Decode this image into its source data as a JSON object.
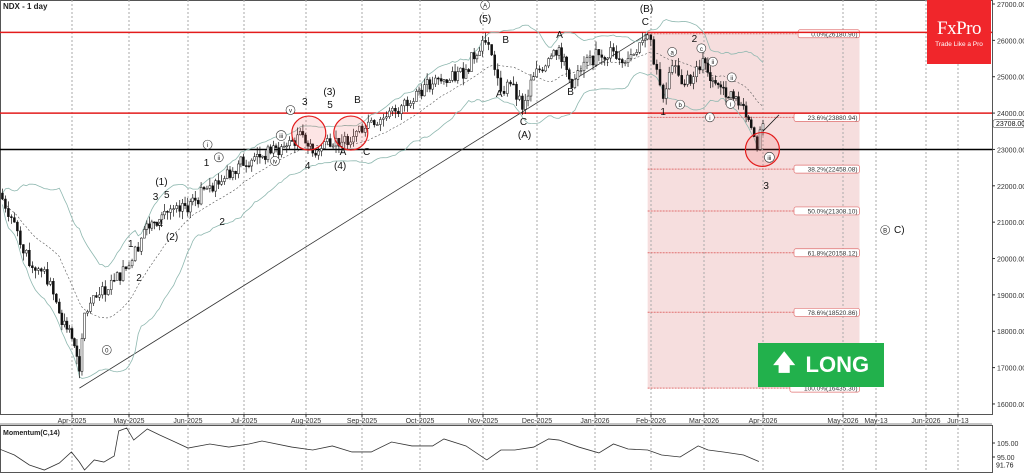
{
  "header": {
    "symbol_title": "NDX - 1 day"
  },
  "brand": {
    "name": "FxPro",
    "tagline": "Trade Like a Pro",
    "color": "#f0262b"
  },
  "signal": {
    "label": "LONG",
    "icon": "arrow-up-icon",
    "color": "#22b14c"
  },
  "chart_data": [
    {
      "type": "candlestick",
      "title": "NDX - 1 day",
      "time_unit": "months since Mar-2025",
      "ylim": [
        16000,
        27000
      ],
      "y_ticks": [
        16000,
        17000,
        18000,
        19000,
        20000,
        21000,
        22000,
        23000,
        24000,
        25000,
        26000,
        27000
      ],
      "y_tick_labels": [
        "16000.00",
        "17000.00",
        "18000.00",
        "19000.00",
        "20000.00",
        "21000.00",
        "22000.00",
        "23000.00",
        "24000.00",
        "25000.00",
        "26000.00",
        "27000.00"
      ],
      "current_price_label": "23708.00",
      "current_price": 23708,
      "x_ticks": [
        {
          "t": 1,
          "label": "Apr-2025"
        },
        {
          "t": 2,
          "label": "May-2025"
        },
        {
          "t": 3,
          "label": "Jun-2025"
        },
        {
          "t": 4,
          "label": "Jul-2025"
        },
        {
          "t": 5,
          "label": "Aug-2025"
        },
        {
          "t": 6,
          "label": "Sep-2025"
        },
        {
          "t": 7,
          "label": "Oct-2025"
        },
        {
          "t": 8,
          "label": "Nov-2025"
        },
        {
          "t": 9,
          "label": "Dec-2025"
        },
        {
          "t": 10,
          "label": "Jan-2026"
        },
        {
          "t": 11,
          "label": "Feb-2026"
        },
        {
          "t": 12,
          "label": "Mar-2026"
        },
        {
          "t": 13,
          "label": "Apr-2026"
        },
        {
          "t": 14,
          "label": "May-2026"
        },
        {
          "t": 14.4,
          "label": "May-13"
        },
        {
          "t": 15,
          "label": "Jun-2026"
        },
        {
          "t": 15.4,
          "label": "Jun-13"
        }
      ],
      "closes": [
        [
          -0.26,
          21800
        ],
        [
          0,
          21000
        ],
        [
          0.26,
          19800
        ],
        [
          0.52,
          19700
        ],
        [
          0.78,
          18500
        ],
        [
          1,
          17800
        ],
        [
          1.13,
          16900
        ],
        [
          1.22,
          18500
        ],
        [
          1.48,
          19000
        ],
        [
          1.74,
          19400
        ],
        [
          2,
          19800
        ],
        [
          2.26,
          20800
        ],
        [
          2.43,
          21000
        ],
        [
          2.6,
          21300
        ],
        [
          2.86,
          21300
        ],
        [
          3.13,
          21600
        ],
        [
          3.39,
          22000
        ],
        [
          3.65,
          22200
        ],
        [
          3.9,
          22600
        ],
        [
          4.17,
          22800
        ],
        [
          4.43,
          22900
        ],
        [
          4.69,
          23100
        ],
        [
          4.95,
          23400
        ],
        [
          5.12,
          22900
        ],
        [
          5.38,
          23300
        ],
        [
          5.64,
          23200
        ],
        [
          5.9,
          23500
        ],
        [
          6.16,
          23800
        ],
        [
          6.42,
          23900
        ],
        [
          6.68,
          24200
        ],
        [
          6.94,
          24600
        ],
        [
          7.2,
          24800
        ],
        [
          7.47,
          24900
        ],
        [
          7.73,
          25200
        ],
        [
          7.99,
          26000
        ],
        [
          8.16,
          25600
        ],
        [
          8.33,
          24600
        ],
        [
          8.51,
          24800
        ],
        [
          8.73,
          24100
        ],
        [
          8.94,
          25000
        ],
        [
          9.2,
          25500
        ],
        [
          9.38,
          25800
        ],
        [
          9.6,
          24700
        ],
        [
          9.81,
          25400
        ],
        [
          10.07,
          25600
        ],
        [
          10.33,
          25700
        ],
        [
          10.59,
          25500
        ],
        [
          10.85,
          26000
        ],
        [
          10.94,
          26150
        ],
        [
          11.11,
          25200
        ],
        [
          11.23,
          24400
        ],
        [
          11.4,
          25300
        ],
        [
          11.58,
          24800
        ],
        [
          11.8,
          25000
        ],
        [
          11.98,
          25500
        ],
        [
          12.15,
          24900
        ],
        [
          12.33,
          24700
        ],
        [
          12.5,
          24400
        ],
        [
          12.67,
          24200
        ],
        [
          12.8,
          23600
        ],
        [
          12.9,
          23000
        ],
        [
          13.0,
          23708
        ]
      ],
      "horizontal_levels": [
        {
          "price": 26220,
          "color": "#e31c1c"
        },
        {
          "price": 24000,
          "color": "#e31c1c"
        },
        {
          "price": 23000,
          "color": "#000000"
        }
      ],
      "trendline": {
        "from": [
          1.13,
          16435
        ],
        "to": [
          10.94,
          26180
        ]
      },
      "fibonacci": {
        "from_t": 10.94,
        "to_t": 14.2,
        "levels": [
          {
            "price": 26180.9,
            "label": "0.0%(26180.90)"
          },
          {
            "price": 23880.94,
            "label": "23.6%(23880.94)"
          },
          {
            "price": 22458.08,
            "label": "38.2%(22458.08)"
          },
          {
            "price": 21308.1,
            "label": "50.0%(21308.10)"
          },
          {
            "price": 20158.12,
            "label": "61.8%(20158.12)"
          },
          {
            "price": 18520.86,
            "label": "78.6%(18520.86)"
          },
          {
            "price": 16435.3,
            "label": "100.0%(16435.30)"
          }
        ]
      },
      "highlight_circles": [
        [
          5.05,
          23450
        ],
        [
          5.8,
          23450
        ],
        [
          12.99,
          23000
        ]
      ],
      "wave_labels": [
        {
          "t": 1.61,
          "p": 17402,
          "text": "0",
          "circled": true
        },
        {
          "t": 2.03,
          "p": 20317,
          "text": "1"
        },
        {
          "t": 2.17,
          "p": 19382,
          "text": "2"
        },
        {
          "t": 2.45,
          "p": 21610,
          "text": "3"
        },
        {
          "t": 2.53,
          "p": 20867,
          "text": "4"
        },
        {
          "t": 2.64,
          "p": 21664,
          "text": "5"
        },
        {
          "t": 2.55,
          "p": 22022,
          "text": "(1)"
        },
        {
          "t": 2.73,
          "p": 20509,
          "text": "(2)"
        },
        {
          "t": 3.33,
          "p": 22545,
          "text": "1"
        },
        {
          "t": 3.61,
          "p": 20922,
          "text": "2"
        },
        {
          "t": 4.98,
          "p": 24222,
          "text": "3"
        },
        {
          "t": 5.03,
          "p": 22462,
          "text": "4"
        },
        {
          "t": 5.42,
          "p": 24497,
          "text": "(3)"
        },
        {
          "t": 5.43,
          "p": 24140,
          "text": "5"
        },
        {
          "t": 5.66,
          "p": 22847,
          "text": "A"
        },
        {
          "t": 5.92,
          "p": 24277,
          "text": "B"
        },
        {
          "t": 6.08,
          "p": 22847,
          "text": "C"
        },
        {
          "t": 5.61,
          "p": 22462,
          "text": "(4)"
        },
        {
          "t": 8.04,
          "p": 26890,
          "text": "A",
          "circled": true
        },
        {
          "t": 8.04,
          "p": 26505,
          "text": "(5)"
        },
        {
          "t": 8.3,
          "p": 24442,
          "text": "A"
        },
        {
          "t": 8.42,
          "p": 25927,
          "text": "B"
        },
        {
          "t": 8.75,
          "p": 23672,
          "text": "C"
        },
        {
          "t": 8.77,
          "p": 23315,
          "text": "(A)"
        },
        {
          "t": 9.39,
          "p": 26065,
          "text": "A"
        },
        {
          "t": 9.58,
          "p": 24497,
          "text": "B"
        },
        {
          "t": 10.92,
          "p": 26780,
          "text": "(B)"
        },
        {
          "t": 10.9,
          "p": 26422,
          "text": "C"
        },
        {
          "t": 11.23,
          "p": 23947,
          "text": "1"
        },
        {
          "t": 11.82,
          "p": 25955,
          "text": "2"
        },
        {
          "t": 13.04,
          "p": 21912,
          "text": "3"
        },
        {
          "t": 14.51,
          "p": 20702,
          "text": "B",
          "circled": true
        },
        {
          "t": 14.68,
          "p": 20702,
          "text": "C)"
        },
        {
          "t": 4.6,
          "p": 23300,
          "text": "iii",
          "circled": true
        },
        {
          "t": 4.5,
          "p": 22600,
          "text": "iv",
          "circled": true
        },
        {
          "t": 4.75,
          "p": 24000,
          "text": "v",
          "circled": true
        },
        {
          "t": 3.55,
          "p": 22700,
          "text": "ii",
          "circled": true
        },
        {
          "t": 3.35,
          "p": 23050,
          "text": "i",
          "circled": true
        },
        {
          "t": 11.4,
          "p": 25600,
          "text": "a",
          "circled": true
        },
        {
          "t": 11.55,
          "p": 24150,
          "text": "b",
          "circled": true
        },
        {
          "t": 11.95,
          "p": 25700,
          "text": "c",
          "circled": true
        },
        {
          "t": 12.15,
          "p": 25330,
          "text": "ii",
          "circled": true
        },
        {
          "t": 12.1,
          "p": 23800,
          "text": "i",
          "circled": true
        },
        {
          "t": 12.47,
          "p": 24900,
          "text": "ii",
          "circled": true
        },
        {
          "t": 12.45,
          "p": 24170,
          "text": "i",
          "circled": true
        },
        {
          "t": 13.08,
          "p": 22700,
          "text": "iii",
          "circled": true
        }
      ]
    },
    {
      "type": "line",
      "title": "Momentum(C,14)",
      "ylim": [
        84,
        118
      ],
      "y_tick_labels": [
        "105.00",
        "95.00"
      ],
      "y_ticks": [
        105,
        95
      ],
      "last_value_label": "91.76",
      "points": [
        [
          -0.26,
          100.7
        ],
        [
          0,
          96.4
        ],
        [
          0.26,
          89.3
        ],
        [
          0.52,
          85.7
        ],
        [
          0.78,
          90.7
        ],
        [
          0.99,
          98.6
        ],
        [
          1.13,
          91.4
        ],
        [
          1.22,
          85.7
        ],
        [
          1.39,
          92.9
        ],
        [
          1.56,
          91.4
        ],
        [
          1.74,
          95.7
        ],
        [
          1.82,
          113.6
        ],
        [
          1.96,
          115.7
        ],
        [
          2.08,
          107.1
        ],
        [
          2.31,
          115
        ],
        [
          2.52,
          110.7
        ],
        [
          2.78,
          105.7
        ],
        [
          3.0,
          101.4
        ],
        [
          3.39,
          104.3
        ],
        [
          3.73,
          102.1
        ],
        [
          4.08,
          104.3
        ],
        [
          4.29,
          106.4
        ],
        [
          4.77,
          102.1
        ],
        [
          5.12,
          100
        ],
        [
          5.47,
          102.9
        ],
        [
          5.82,
          98.6
        ],
        [
          6.16,
          98.6
        ],
        [
          6.51,
          105.7
        ],
        [
          6.86,
          102.9
        ],
        [
          7.2,
          102.9
        ],
        [
          7.38,
          107.9
        ],
        [
          7.73,
          102.9
        ],
        [
          8.07,
          92.9
        ],
        [
          8.33,
          100
        ],
        [
          8.59,
          100
        ],
        [
          8.94,
          102.1
        ],
        [
          9.2,
          107.9
        ],
        [
          9.38,
          107.1
        ],
        [
          9.72,
          102.1
        ],
        [
          10.07,
          97.9
        ],
        [
          10.33,
          104.3
        ],
        [
          10.59,
          100.7
        ],
        [
          10.94,
          100
        ],
        [
          11.2,
          96.4
        ],
        [
          11.55,
          95
        ],
        [
          11.89,
          102.9
        ],
        [
          12.07,
          100
        ],
        [
          12.33,
          98.6
        ],
        [
          12.67,
          96.4
        ],
        [
          12.93,
          91.76
        ]
      ]
    }
  ]
}
